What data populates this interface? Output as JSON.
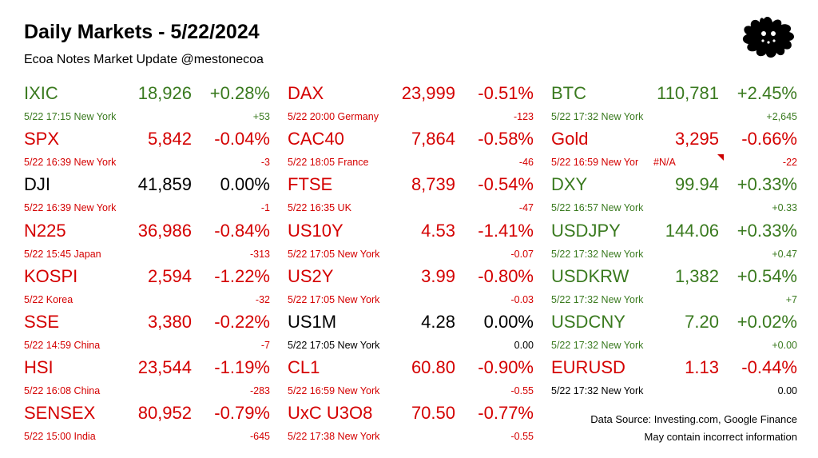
{
  "header": {
    "title": "Daily Markets - 5/22/2024",
    "subtitle": "Ecoa Notes Market Update @mestonecoa"
  },
  "colors": {
    "up": "#3a7a1f",
    "down": "#d40000",
    "flat": "#000000"
  },
  "logo": {
    "icon": "splat-face-logo-icon"
  },
  "columns": [
    {
      "rows": [
        {
          "symbol": "IXIC",
          "price": "18,926",
          "pct": "+0.28%",
          "info": "5/22 17:15 New York",
          "change": "+53",
          "dir": "up"
        },
        {
          "symbol": "SPX",
          "price": "5,842",
          "pct": "-0.04%",
          "info": "5/22 16:39 New York",
          "change": "-3",
          "dir": "down"
        },
        {
          "symbol": "DJI",
          "price": "41,859",
          "pct": "0.00%",
          "info": "5/22 16:39 New York",
          "change": "-1",
          "dir": "flat",
          "info_dir": "down"
        },
        {
          "symbol": "N225",
          "price": "36,986",
          "pct": "-0.84%",
          "info": "5/22 15:45 Japan",
          "change": "-313",
          "dir": "down"
        },
        {
          "symbol": "KOSPI",
          "price": "2,594",
          "pct": "-1.22%",
          "info": "5/22  Korea",
          "change": "-32",
          "dir": "down"
        },
        {
          "symbol": "SSE",
          "price": "3,380",
          "pct": "-0.22%",
          "info": "5/22 14:59 China",
          "change": "-7",
          "dir": "down"
        },
        {
          "symbol": "HSI",
          "price": "23,544",
          "pct": "-1.19%",
          "info": "5/22 16:08 China",
          "change": "-283",
          "dir": "down"
        },
        {
          "symbol": "SENSEX",
          "price": "80,952",
          "pct": "-0.79%",
          "info": "5/22 15:00 India",
          "change": "-645",
          "dir": "down"
        }
      ]
    },
    {
      "rows": [
        {
          "symbol": "DAX",
          "price": "23,999",
          "pct": "-0.51%",
          "info": "5/22 20:00 Germany",
          "change": "-123",
          "dir": "down"
        },
        {
          "symbol": "CAC40",
          "price": "7,864",
          "pct": "-0.58%",
          "info": "5/22 18:05 France",
          "change": "-46",
          "dir": "down"
        },
        {
          "symbol": "FTSE",
          "price": "8,739",
          "pct": "-0.54%",
          "info": "5/22 16:35 UK",
          "change": "-47",
          "dir": "down"
        },
        {
          "symbol": "US10Y",
          "price": "4.53",
          "pct": "-1.41%",
          "info": "5/22 17:05 New York",
          "change": "-0.07",
          "dir": "down"
        },
        {
          "symbol": "US2Y",
          "price": "3.99",
          "pct": "-0.80%",
          "info": "5/22 17:05 New York",
          "change": "-0.03",
          "dir": "down"
        },
        {
          "symbol": "US1M",
          "price": "4.28",
          "pct": "0.00%",
          "info": "5/22 17:05 New York",
          "change": "0.00",
          "dir": "flat"
        },
        {
          "symbol": "CL1",
          "price": "60.80",
          "pct": "-0.90%",
          "info": "5/22 16:59 New York",
          "change": "-0.55",
          "dir": "down"
        },
        {
          "symbol": "UxC U3O8",
          "price": "70.50",
          "pct": "-0.77%",
          "info": "5/22 17:38 New York",
          "change": "-0.55",
          "dir": "down"
        }
      ]
    },
    {
      "rows": [
        {
          "symbol": "BTC",
          "price": "110,781",
          "pct": "+2.45%",
          "info": "5/22 17:32 New York",
          "change": "+2,645",
          "dir": "up"
        },
        {
          "symbol": "Gold",
          "price": "3,295",
          "pct": "-0.66%",
          "info": "5/22 16:59 New Yor",
          "na": "#N/A",
          "change": "-22",
          "dir": "down"
        },
        {
          "symbol": "DXY",
          "price": "99.94",
          "pct": "+0.33%",
          "info": "5/22 16:57 New York",
          "change": "+0.33",
          "dir": "up"
        },
        {
          "symbol": "USDJPY",
          "price": "144.06",
          "pct": "+0.33%",
          "info": "5/22 17:32 New York",
          "change": "+0.47",
          "dir": "up"
        },
        {
          "symbol": "USDKRW",
          "price": "1,382",
          "pct": "+0.54%",
          "info": "5/22 17:32 New York",
          "change": "+7",
          "dir": "up"
        },
        {
          "symbol": "USDCNY",
          "price": "7.20",
          "pct": "+0.02%",
          "info": "5/22 17:32 New York",
          "change": "+0.00",
          "dir": "up"
        },
        {
          "symbol": "EURUSD",
          "price": "1.13",
          "pct": "-0.44%",
          "info": "5/22 17:32 New York",
          "change": "0.00",
          "dir": "down",
          "info_dir": "flat"
        }
      ]
    }
  ],
  "footer": {
    "source": "Data Source: Investing.com, Google Finance",
    "disclaimer": "May contain incorrect information"
  }
}
